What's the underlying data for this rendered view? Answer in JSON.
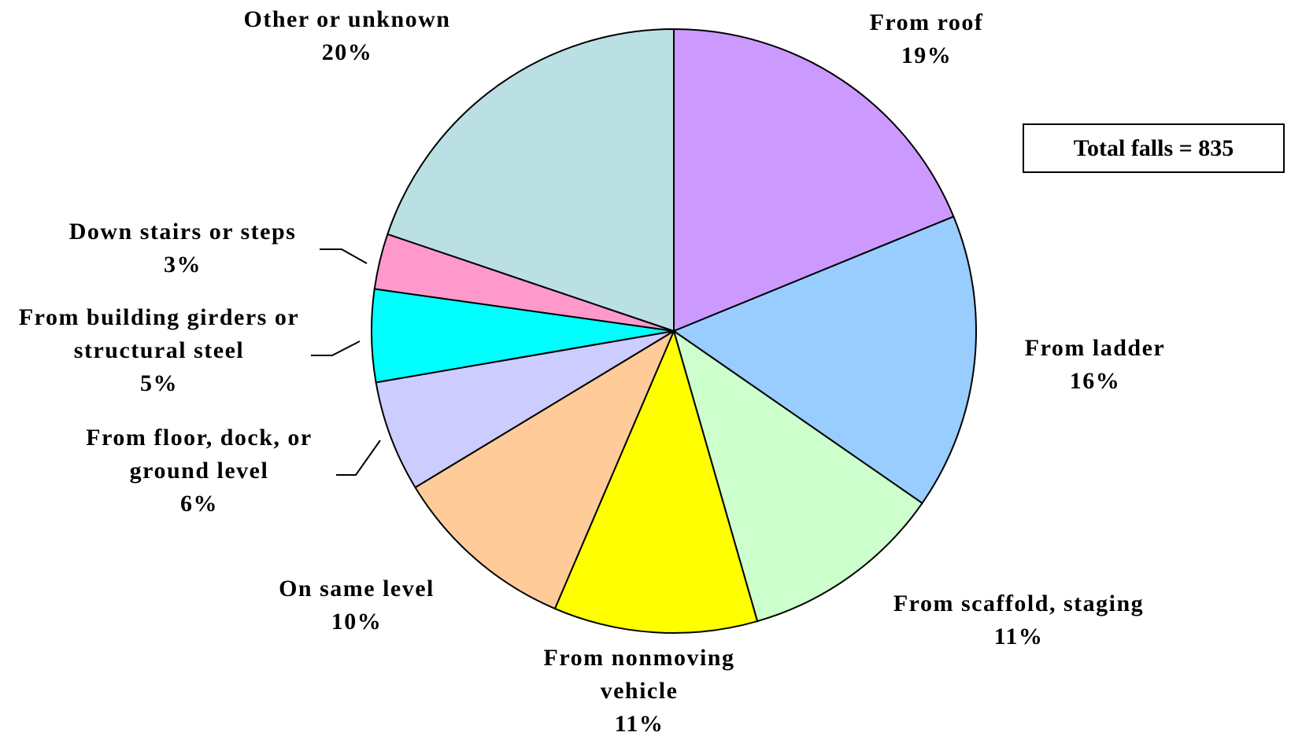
{
  "chart_data": {
    "type": "pie",
    "categories": [
      "From roof",
      "From ladder",
      "From scaffold, staging",
      "From nonmoving vehicle",
      "On same level",
      "From floor, dock, or ground level",
      "From building girders or structural steel",
      "Down stairs or steps",
      "Other or unknown"
    ],
    "values": [
      19,
      16,
      11,
      11,
      10,
      6,
      5,
      3,
      20
    ],
    "value_labels": [
      "19%",
      "16%",
      "11%",
      "11%",
      "10%",
      "6%",
      "5%",
      "3%",
      "20%"
    ],
    "colors": [
      "#cc99ff",
      "#99ccff",
      "#ccffcc",
      "#ffff00",
      "#ffcc99",
      "#ccccff",
      "#00ffff",
      "#ff99cc",
      "#bbe0e3"
    ],
    "annotation": "Total falls = 835"
  }
}
